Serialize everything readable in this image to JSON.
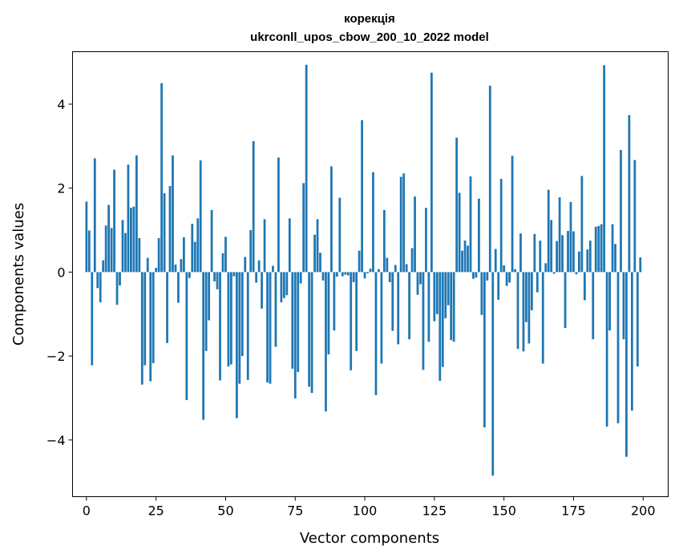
{
  "chart_data": {
    "type": "bar",
    "title": "корекція",
    "subtitle": "ukrconll_upos_cbow_200_10_2022 model",
    "xlabel": "Vector components",
    "ylabel": "Components values",
    "xlim": [
      -5,
      209
    ],
    "ylim": [
      -5.35,
      5.25
    ],
    "xticks": [
      0,
      25,
      50,
      75,
      100,
      125,
      150,
      175,
      200
    ],
    "yticks": [
      -4,
      -2,
      0,
      2,
      4
    ],
    "color": "#1f77b4",
    "grid": false,
    "values": [
      1.68,
      0.99,
      -2.22,
      2.71,
      -0.38,
      -0.72,
      0.28,
      1.11,
      1.6,
      1.05,
      2.44,
      -0.78,
      -0.32,
      1.24,
      0.93,
      2.56,
      1.53,
      1.56,
      2.78,
      0.81,
      -2.68,
      -2.22,
      0.34,
      -2.6,
      -2.17,
      0.1,
      0.81,
      4.5,
      1.88,
      -1.69,
      2.05,
      2.78,
      0.18,
      -0.73,
      0.31,
      0.83,
      -3.05,
      -0.14,
      1.15,
      0.72,
      1.28,
      2.66,
      -3.52,
      -1.88,
      -1.15,
      1.48,
      -0.22,
      -0.41,
      -2.58,
      0.45,
      0.84,
      -2.25,
      -2.2,
      -0.1,
      -3.48,
      -2.66,
      -2.0,
      0.36,
      -2.57,
      1.0,
      3.12,
      -0.25,
      0.28,
      -0.87,
      1.26,
      -2.63,
      -2.66,
      0.15,
      -1.78,
      2.73,
      -0.72,
      -0.62,
      -0.55,
      1.28,
      -2.3,
      -3.01,
      -2.38,
      -0.27,
      2.12,
      4.94,
      -2.73,
      -2.88,
      0.89,
      1.26,
      0.46,
      -0.2,
      -3.32,
      -1.96,
      2.52,
      -1.39,
      -0.11,
      1.77,
      -0.1,
      -0.06,
      -0.08,
      -2.34,
      -0.24,
      -1.88,
      0.51,
      3.62,
      -0.15,
      -0.03,
      0.08,
      2.38,
      -2.93,
      0.07,
      -2.18,
      1.48,
      0.34,
      -0.24,
      -1.4,
      0.17,
      -1.72,
      2.27,
      2.35,
      0.19,
      -1.6,
      0.57,
      1.8,
      -0.54,
      -0.29,
      -2.33,
      1.53,
      -1.66,
      4.75,
      -1.17,
      -1.0,
      -2.59,
      -2.26,
      -1.1,
      -0.79,
      -1.62,
      -1.66,
      3.2,
      1.89,
      0.51,
      0.75,
      0.63,
      2.28,
      -0.16,
      -0.13,
      1.75,
      -1.02,
      -3.7,
      -0.2,
      4.44,
      -4.85,
      0.55,
      -0.66,
      2.22,
      0.16,
      -0.33,
      -0.25,
      2.77,
      0.07,
      -1.83,
      0.92,
      -1.89,
      -1.19,
      -1.7,
      -0.91,
      0.91,
      -0.48,
      0.75,
      -2.18,
      0.21,
      1.96,
      1.24,
      -0.04,
      0.74,
      1.78,
      0.88,
      -1.33,
      0.98,
      1.67,
      0.97,
      -0.05,
      0.49,
      2.29,
      -0.67,
      0.54,
      0.75,
      -1.6,
      1.08,
      1.1,
      1.14,
      4.93,
      -3.68,
      -1.39,
      1.14,
      0.67,
      -3.6,
      2.91,
      -1.6,
      -4.4,
      3.74,
      -3.3,
      2.67,
      -2.25,
      0.35
    ]
  }
}
